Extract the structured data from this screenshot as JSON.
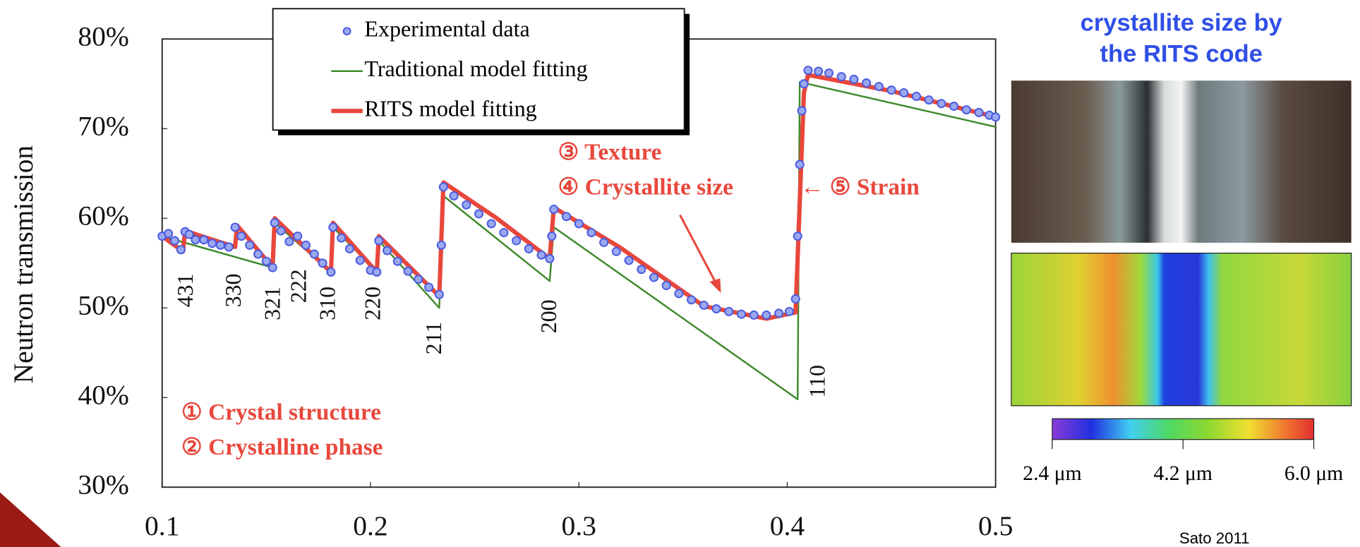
{
  "chart_data": {
    "type": "line",
    "xlim": [
      0.1,
      0.5
    ],
    "xticks": [
      0.1,
      0.2,
      0.3,
      0.4,
      0.5
    ],
    "ylim": [
      30,
      80
    ],
    "yticks": [
      {
        "value": 30,
        "label": "30%"
      },
      {
        "value": 40,
        "label": "40%"
      },
      {
        "value": 50,
        "label": "50%"
      },
      {
        "value": 60,
        "label": "60%"
      },
      {
        "value": 70,
        "label": "70%"
      },
      {
        "value": 80,
        "label": "80%"
      }
    ],
    "y_label": "Neutron transmission",
    "series": [
      {
        "name": "Experimental data",
        "color": "#4a5be0",
        "marker": "circle",
        "x": [
          0.1,
          0.103,
          0.106,
          0.109,
          0.111,
          0.113,
          0.116,
          0.12,
          0.124,
          0.128,
          0.132,
          0.135,
          0.138,
          0.142,
          0.146,
          0.15,
          0.153,
          0.154,
          0.157,
          0.161,
          0.165,
          0.169,
          0.173,
          0.177,
          0.181,
          0.182,
          0.186,
          0.19,
          0.195,
          0.2,
          0.203,
          0.204,
          0.208,
          0.213,
          0.218,
          0.223,
          0.228,
          0.233,
          0.234,
          0.235,
          0.24,
          0.246,
          0.252,
          0.258,
          0.264,
          0.27,
          0.276,
          0.282,
          0.286,
          0.287,
          0.288,
          0.294,
          0.3,
          0.306,
          0.312,
          0.318,
          0.324,
          0.33,
          0.336,
          0.342,
          0.348,
          0.354,
          0.36,
          0.366,
          0.372,
          0.378,
          0.384,
          0.39,
          0.396,
          0.401,
          0.404,
          0.405,
          0.406,
          0.407,
          0.408,
          0.41,
          0.415,
          0.42,
          0.426,
          0.432,
          0.438,
          0.444,
          0.45,
          0.456,
          0.462,
          0.468,
          0.474,
          0.48,
          0.486,
          0.492,
          0.497,
          0.5
        ],
        "values": [
          58,
          58.3,
          57.5,
          56.5,
          58.5,
          58.2,
          57.6,
          57.6,
          57.2,
          57,
          56.8,
          59,
          58,
          57,
          56,
          55.2,
          54.5,
          59.5,
          58.6,
          57.4,
          58,
          57,
          56,
          55,
          54,
          59,
          57.8,
          56.6,
          55.3,
          54.2,
          54,
          57.5,
          56.4,
          55.2,
          54.1,
          53.2,
          52.3,
          51.5,
          57,
          63.5,
          62.5,
          61.5,
          60.5,
          59.4,
          58.4,
          57.5,
          56.6,
          55.9,
          55.5,
          58,
          61,
          60.2,
          59.4,
          58.4,
          57.3,
          56.3,
          55.3,
          54.3,
          53.4,
          52.5,
          51.6,
          50.9,
          50.3,
          49.9,
          49.6,
          49.3,
          49.2,
          49.2,
          49.4,
          49.6,
          51,
          58,
          66,
          72,
          75,
          76.5,
          76.4,
          76.2,
          75.8,
          75.5,
          75.1,
          74.7,
          74.3,
          74,
          73.6,
          73.2,
          72.8,
          72.5,
          72.1,
          71.8,
          71.5,
          71.3
        ]
      },
      {
        "name": "Traditional model fitting",
        "color": "#3f8a2c",
        "x": [
          0.1,
          0.153,
          0.154,
          0.181,
          0.182,
          0.203,
          0.204,
          0.233,
          0.235,
          0.286,
          0.288,
          0.405,
          0.406,
          0.5
        ],
        "values": [
          58,
          54.5,
          59.5,
          54,
          59,
          54,
          57.5,
          50,
          62.5,
          53,
          59,
          39.8,
          75.2,
          70.2
        ]
      },
      {
        "name": "RITS model fitting",
        "color": "#e8473c",
        "x": [
          0.1,
          0.11,
          0.111,
          0.135,
          0.136,
          0.153,
          0.154,
          0.181,
          0.182,
          0.203,
          0.204,
          0.233,
          0.235,
          0.26,
          0.286,
          0.288,
          0.32,
          0.36,
          0.39,
          0.404,
          0.408,
          0.41,
          0.45,
          0.5
        ],
        "values": [
          58,
          56.3,
          58.6,
          56.8,
          59.2,
          54.5,
          60,
          54,
          59.5,
          54,
          58,
          51.3,
          64,
          60.1,
          55.5,
          61.2,
          56.7,
          50.2,
          48.8,
          49.5,
          74,
          76,
          74.2,
          71.3
        ]
      }
    ],
    "peak_labels": [
      "431",
      "330",
      "321",
      "222",
      "310",
      "220",
      "211",
      "200",
      "110"
    ],
    "annotations": [
      "③ Texture",
      "④ Crystallite size",
      "← ⑤ Strain",
      "① Crystal structure",
      "② Crystalline phase"
    ]
  },
  "side_panel": {
    "title_lines": [
      "crystallite size by",
      "the RITS code"
    ],
    "colorbar_labels": [
      "2.4 μm",
      "4.2 μm",
      "6.0 μm"
    ]
  },
  "credit": "Sato 2011"
}
